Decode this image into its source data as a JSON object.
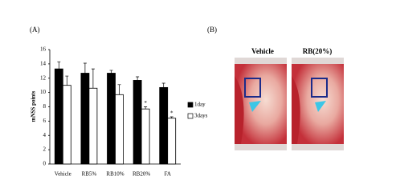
{
  "panel_labels": [
    "(A)",
    "(B)"
  ],
  "image_labels": [
    "Vehicle",
    "RB(20%)"
  ],
  "chart_data": {
    "type": "bar",
    "y_label": "mNSS points",
    "categories": [
      "Vehicle",
      "RB5%",
      "RB10%",
      "RB20%",
      "FA"
    ],
    "series": [
      {
        "name": "1day",
        "color": "#000000",
        "values": [
          13.3,
          12.7,
          12.7,
          11.7,
          10.7
        ],
        "errors": [
          1.0,
          1.4,
          0.4,
          0.5,
          0.6
        ]
      },
      {
        "name": "3days",
        "color": "#ffffff",
        "values": [
          11.0,
          10.6,
          9.7,
          7.7,
          6.4
        ],
        "errors": [
          1.3,
          2.7,
          1.4,
          0.3,
          0.2
        ],
        "significance": [
          null,
          null,
          null,
          "*",
          "*"
        ]
      }
    ],
    "ylim": [
      0,
      16
    ],
    "yticks": [
      0,
      2,
      4,
      6,
      8,
      10,
      12,
      14,
      16
    ]
  }
}
